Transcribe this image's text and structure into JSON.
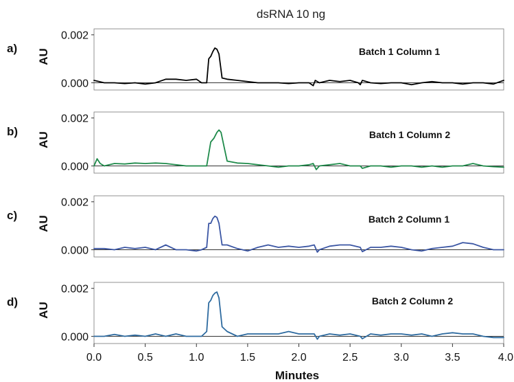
{
  "chart_data": {
    "type": "line",
    "title": "dsRNA 10 ng",
    "xlabel": "Minutes",
    "xlim": [
      0.0,
      4.0
    ],
    "xticks": [
      "0.0",
      "0.5",
      "1.0",
      "1.5",
      "2.0",
      "2.5",
      "3.0",
      "3.5",
      "4.0"
    ],
    "xtick_values": [
      0.0,
      0.5,
      1.0,
      1.5,
      2.0,
      2.5,
      3.0,
      3.5,
      4.0
    ],
    "panels": [
      {
        "letter": "a)",
        "ylabel": "AU",
        "yticks": [
          "0.000",
          "0.002"
        ],
        "ytick_values": [
          0.0,
          0.002
        ],
        "ylim": [
          -0.0003,
          0.00225
        ],
        "series": [
          {
            "name": "Batch 1 Column 1",
            "color": "#000000",
            "x": [
              0.0,
              0.05,
              0.1,
              0.2,
              0.3,
              0.4,
              0.5,
              0.6,
              0.7,
              0.8,
              0.9,
              1.0,
              1.05,
              1.1,
              1.12,
              1.14,
              1.16,
              1.18,
              1.2,
              1.22,
              1.25,
              1.3,
              1.4,
              1.5,
              1.6,
              1.7,
              1.8,
              1.9,
              2.0,
              2.1,
              2.14,
              2.16,
              2.2,
              2.3,
              2.4,
              2.5,
              2.58,
              2.6,
              2.62,
              2.7,
              2.8,
              2.9,
              3.0,
              3.1,
              3.2,
              3.3,
              3.4,
              3.5,
              3.6,
              3.7,
              3.8,
              3.9,
              4.0
            ],
            "y": [
              0.0001,
              5e-05,
              0.0,
              0.0,
              -3e-05,
              0.0,
              -5e-05,
              0.0,
              0.00015,
              0.00015,
              0.0001,
              0.00015,
              0.0,
              0.0,
              0.001,
              0.0011,
              0.0013,
              0.00145,
              0.0014,
              0.0012,
              0.0002,
              0.00015,
              0.0001,
              5e-05,
              0.0,
              0.0,
              0.0,
              -3e-05,
              0.0,
              0.0,
              -0.00012,
              0.0001,
              0.0,
              0.0001,
              5e-05,
              0.0001,
              0.0,
              -8e-05,
              0.0001,
              0.0,
              -3e-05,
              0.0,
              0.0,
              -8e-05,
              0.0,
              5e-05,
              0.0,
              0.0,
              -5e-05,
              0.0,
              0.0,
              -5e-05,
              0.0001
            ]
          }
        ]
      },
      {
        "letter": "b)",
        "ylabel": "AU",
        "yticks": [
          "0.000",
          "0.002"
        ],
        "ytick_values": [
          0.0,
          0.002
        ],
        "ylim": [
          -0.0003,
          0.00225
        ],
        "series": [
          {
            "name": "Batch 1 Column 2",
            "color": "#1e8a4a",
            "x": [
              0.0,
              0.03,
              0.06,
              0.1,
              0.2,
              0.3,
              0.4,
              0.5,
              0.6,
              0.7,
              0.8,
              0.9,
              1.0,
              1.1,
              1.14,
              1.17,
              1.2,
              1.22,
              1.24,
              1.27,
              1.3,
              1.4,
              1.5,
              1.6,
              1.7,
              1.8,
              1.9,
              2.0,
              2.1,
              2.14,
              2.17,
              2.2,
              2.3,
              2.4,
              2.5,
              2.6,
              2.62,
              2.7,
              2.8,
              2.9,
              3.0,
              3.1,
              3.2,
              3.3,
              3.4,
              3.5,
              3.6,
              3.7,
              3.8,
              3.9,
              4.0
            ],
            "y": [
              0.0,
              0.0003,
              0.0001,
              0.0,
              0.0001,
              8e-05,
              0.00012,
              0.0001,
              0.00012,
              0.0001,
              5e-05,
              0.0,
              0.0,
              0.0,
              0.001,
              0.00115,
              0.0014,
              0.0015,
              0.0014,
              0.0008,
              0.0002,
              0.00012,
              0.0001,
              5e-05,
              0.0,
              -5e-05,
              0.0,
              0.0,
              5e-05,
              0.0001,
              -0.00015,
              0.0,
              5e-05,
              0.0001,
              0.0,
              0.0,
              -0.0001,
              0.0,
              0.0,
              -5e-05,
              0.0,
              0.0,
              -5e-05,
              0.0,
              -5e-05,
              0.0,
              0.0,
              0.0001,
              0.0,
              -3e-05,
              -5e-05
            ]
          }
        ]
      },
      {
        "letter": "c)",
        "ylabel": "AU",
        "yticks": [
          "0.000",
          "0.002"
        ],
        "ytick_values": [
          0.0,
          0.002
        ],
        "ylim": [
          -0.0003,
          0.00225
        ],
        "series": [
          {
            "name": "Batch 2 Column 1",
            "color": "#3a55a3",
            "x": [
              0.0,
              0.1,
              0.2,
              0.3,
              0.4,
              0.5,
              0.6,
              0.7,
              0.8,
              0.9,
              1.0,
              1.05,
              1.1,
              1.12,
              1.14,
              1.16,
              1.18,
              1.2,
              1.22,
              1.25,
              1.3,
              1.4,
              1.5,
              1.6,
              1.7,
              1.8,
              1.9,
              2.0,
              2.1,
              2.15,
              2.18,
              2.2,
              2.3,
              2.4,
              2.5,
              2.6,
              2.62,
              2.7,
              2.8,
              2.9,
              3.0,
              3.1,
              3.2,
              3.3,
              3.4,
              3.5,
              3.6,
              3.7,
              3.8,
              3.9,
              4.0
            ],
            "y": [
              5e-05,
              5e-05,
              0.0,
              0.0001,
              5e-05,
              0.0001,
              0.0,
              0.0002,
              0.0,
              0.0,
              -5e-05,
              0.0,
              0.0001,
              0.0011,
              0.0011,
              0.0013,
              0.0014,
              0.00135,
              0.0011,
              0.0002,
              0.0002,
              5e-05,
              -5e-05,
              0.0001,
              0.0002,
              0.0001,
              0.00015,
              0.0001,
              0.00015,
              0.0002,
              -0.0001,
              0.0,
              0.00015,
              0.0002,
              0.0002,
              0.0001,
              -8e-05,
              0.0001,
              0.0001,
              0.00015,
              0.0001,
              0.0,
              -5e-05,
              5e-05,
              0.0001,
              0.00015,
              0.0003,
              0.00025,
              0.0001,
              0.0,
              0.0
            ]
          }
        ]
      },
      {
        "letter": "d)",
        "ylabel": "AU",
        "yticks": [
          "0.000",
          "0.002"
        ],
        "ytick_values": [
          0.0,
          0.002
        ],
        "ylim": [
          -0.0003,
          0.00225
        ],
        "series": [
          {
            "name": "Batch 2 Column 2",
            "color": "#2d6a9f",
            "x": [
              0.0,
              0.1,
              0.2,
              0.3,
              0.4,
              0.5,
              0.6,
              0.7,
              0.8,
              0.9,
              1.0,
              1.05,
              1.1,
              1.12,
              1.14,
              1.16,
              1.18,
              1.2,
              1.22,
              1.25,
              1.3,
              1.4,
              1.5,
              1.6,
              1.7,
              1.8,
              1.9,
              2.0,
              2.1,
              2.15,
              2.18,
              2.2,
              2.3,
              2.4,
              2.5,
              2.6,
              2.62,
              2.7,
              2.8,
              2.9,
              3.0,
              3.1,
              3.2,
              3.3,
              3.4,
              3.5,
              3.6,
              3.7,
              3.8,
              3.9,
              4.0
            ],
            "y": [
              0.0,
              0.0,
              8e-05,
              0.0,
              5e-05,
              0.0,
              0.0001,
              0.0,
              0.0001,
              0.0,
              0.0,
              0.0,
              0.0002,
              0.0014,
              0.0015,
              0.0017,
              0.0018,
              0.00185,
              0.0016,
              0.0004,
              0.0002,
              0.0,
              0.0001,
              0.0001,
              0.0001,
              0.0001,
              0.0002,
              0.0001,
              0.0001,
              0.0001,
              -0.00012,
              0.0,
              0.0001,
              5e-05,
              0.0001,
              0.0,
              -0.0001,
              0.0001,
              5e-05,
              0.0001,
              0.0001,
              5e-05,
              0.0001,
              0.0,
              0.0001,
              0.00015,
              0.0001,
              0.0001,
              0.0,
              -5e-05,
              -5e-05
            ]
          }
        ]
      }
    ]
  }
}
